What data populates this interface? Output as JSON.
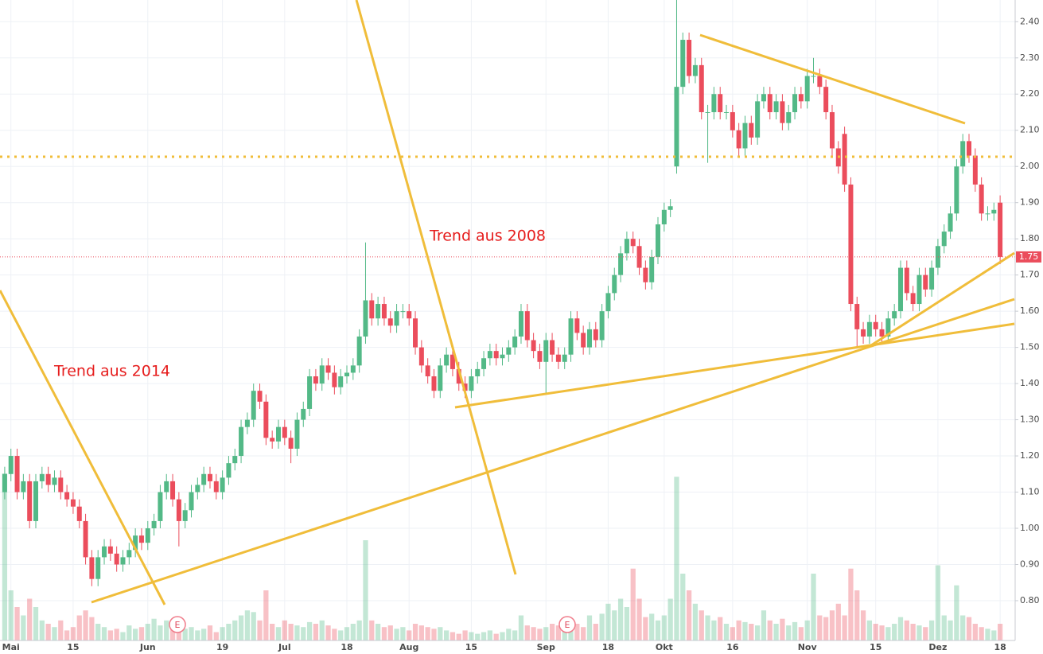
{
  "chart_data": {
    "type": "candlestick",
    "annotations": [
      "Trend aus 2008",
      "Trend aus 2014"
    ],
    "events": [
      "E",
      "E"
    ],
    "last_price": {
      "value": 1.75,
      "label": "1.75"
    },
    "up_color": "#53b987",
    "down_color": "#eb4d5c",
    "grid": true,
    "ylim": [
      0.69,
      2.46
    ],
    "yticks": [
      {
        "value": 0.8,
        "label": "0.80"
      },
      {
        "value": 0.9,
        "label": "0.90"
      },
      {
        "value": 1.0,
        "label": "1.00"
      },
      {
        "value": 1.1,
        "label": "1.10"
      },
      {
        "value": 1.2,
        "label": "1.20"
      },
      {
        "value": 1.3,
        "label": "1.30"
      },
      {
        "value": 1.4,
        "label": "1.40"
      },
      {
        "value": 1.5,
        "label": "1.50"
      },
      {
        "value": 1.6,
        "label": "1.60"
      },
      {
        "value": 1.7,
        "label": "1.70"
      },
      {
        "value": 1.8,
        "label": "1.80"
      },
      {
        "value": 1.9,
        "label": "1.90"
      },
      {
        "value": 2.0,
        "label": "2.00"
      },
      {
        "value": 2.1,
        "label": "2.10"
      },
      {
        "value": 2.2,
        "label": "2.20"
      },
      {
        "value": 2.3,
        "label": "2.30"
      },
      {
        "value": 2.4,
        "label": "2.40"
      }
    ],
    "volume_lim": [
      0,
      100
    ],
    "categories": [
      null,
      "Mai",
      null,
      null,
      null,
      null,
      null,
      null,
      null,
      null,
      null,
      "15",
      null,
      null,
      null,
      null,
      null,
      null,
      null,
      null,
      null,
      null,
      null,
      "Jun",
      null,
      null,
      null,
      null,
      null,
      null,
      null,
      null,
      null,
      null,
      null,
      "19",
      null,
      null,
      null,
      null,
      null,
      null,
      null,
      null,
      null,
      "Jul",
      null,
      null,
      null,
      null,
      null,
      null,
      null,
      null,
      null,
      "18",
      null,
      null,
      null,
      null,
      null,
      null,
      null,
      null,
      null,
      "Aug",
      null,
      null,
      null,
      null,
      null,
      null,
      null,
      null,
      null,
      "15",
      null,
      null,
      null,
      null,
      null,
      null,
      null,
      null,
      null,
      null,
      null,
      "Sep",
      null,
      null,
      null,
      null,
      null,
      null,
      null,
      null,
      null,
      "18",
      null,
      null,
      null,
      null,
      null,
      null,
      null,
      null,
      "Okt",
      null,
      null,
      null,
      null,
      null,
      null,
      null,
      null,
      null,
      null,
      "16",
      null,
      null,
      null,
      null,
      null,
      null,
      null,
      null,
      null,
      null,
      null,
      "Nov",
      null,
      null,
      null,
      null,
      null,
      null,
      null,
      null,
      null,
      null,
      "15",
      null,
      null,
      null,
      null,
      null,
      null,
      null,
      null,
      null,
      "Dez",
      null,
      null,
      null,
      null,
      null,
      null,
      null,
      null,
      null,
      "18"
    ],
    "open": [
      1.1,
      1.15,
      1.2,
      1.1,
      1.13,
      1.02,
      1.13,
      1.15,
      1.12,
      1.14,
      1.1,
      1.08,
      1.06,
      1.02,
      0.92,
      0.86,
      0.92,
      0.95,
      0.93,
      0.9,
      0.92,
      0.94,
      0.98,
      0.96,
      1.0,
      1.02,
      1.1,
      1.13,
      1.08,
      1.02,
      1.05,
      1.1,
      1.12,
      1.15,
      1.13,
      1.1,
      1.14,
      1.18,
      1.2,
      1.28,
      1.3,
      1.38,
      1.35,
      1.25,
      1.24,
      1.28,
      1.25,
      1.22,
      1.3,
      1.33,
      1.42,
      1.4,
      1.45,
      1.43,
      1.39,
      1.42,
      1.43,
      1.45,
      1.53,
      1.63,
      1.58,
      1.62,
      1.58,
      1.56,
      1.6,
      1.6,
      1.58,
      1.5,
      1.45,
      1.42,
      1.38,
      1.45,
      1.48,
      1.44,
      1.4,
      1.38,
      1.42,
      1.44,
      1.47,
      1.49,
      1.47,
      1.48,
      1.5,
      1.53,
      1.6,
      1.52,
      1.49,
      1.46,
      1.52,
      1.48,
      1.46,
      1.48,
      1.58,
      1.54,
      1.5,
      1.55,
      1.52,
      1.6,
      1.65,
      1.7,
      1.76,
      1.8,
      1.78,
      1.72,
      1.68,
      1.75,
      1.84,
      1.88,
      2.0,
      2.22,
      2.35,
      2.25,
      2.28,
      2.15,
      2.15,
      2.2,
      2.15,
      2.15,
      2.1,
      2.05,
      2.12,
      2.08,
      2.18,
      2.2,
      2.15,
      2.18,
      2.12,
      2.15,
      2.2,
      2.18,
      2.25,
      2.25,
      2.22,
      2.15,
      2.05,
      2.09,
      1.95,
      1.62,
      1.55,
      1.53,
      1.57,
      1.55,
      1.53,
      1.58,
      1.6,
      1.72,
      1.65,
      1.62,
      1.7,
      1.66,
      1.72,
      1.78,
      1.82,
      1.87,
      2.0,
      2.07,
      2.03,
      1.95,
      1.87,
      1.87,
      1.9
    ],
    "high": [
      1.17,
      1.22,
      1.22,
      1.15,
      1.15,
      1.15,
      1.17,
      1.17,
      1.16,
      1.16,
      1.12,
      1.1,
      1.08,
      1.04,
      0.94,
      0.94,
      0.97,
      0.97,
      0.95,
      0.94,
      0.96,
      1.0,
      1.0,
      1.02,
      1.04,
      1.12,
      1.15,
      1.15,
      1.1,
      1.07,
      1.12,
      1.14,
      1.17,
      1.17,
      1.15,
      1.16,
      1.2,
      1.22,
      1.3,
      1.32,
      1.4,
      1.4,
      1.37,
      1.27,
      1.3,
      1.3,
      1.27,
      1.32,
      1.35,
      1.44,
      1.44,
      1.47,
      1.47,
      1.45,
      1.44,
      1.45,
      1.47,
      1.55,
      1.79,
      1.65,
      1.64,
      1.64,
      1.6,
      1.62,
      1.62,
      1.62,
      1.6,
      1.52,
      1.47,
      1.44,
      1.47,
      1.5,
      1.5,
      1.46,
      1.42,
      1.44,
      1.46,
      1.49,
      1.51,
      1.51,
      1.5,
      1.52,
      1.55,
      1.62,
      1.62,
      1.54,
      1.51,
      1.54,
      1.54,
      1.5,
      1.5,
      1.6,
      1.6,
      1.56,
      1.57,
      1.57,
      1.62,
      1.67,
      1.72,
      1.78,
      1.82,
      1.82,
      1.8,
      1.74,
      1.77,
      1.86,
      1.9,
      1.91,
      2.46,
      2.37,
      2.37,
      2.3,
      2.3,
      2.17,
      2.22,
      2.22,
      2.17,
      2.17,
      2.12,
      2.14,
      2.14,
      2.2,
      2.22,
      2.22,
      2.2,
      2.2,
      2.17,
      2.22,
      2.22,
      2.27,
      2.3,
      2.27,
      2.24,
      2.17,
      2.07,
      2.11,
      1.97,
      1.64,
      1.57,
      1.59,
      1.59,
      1.57,
      1.6,
      1.62,
      1.74,
      1.74,
      1.67,
      1.72,
      1.72,
      1.74,
      1.8,
      1.84,
      1.89,
      2.02,
      2.09,
      2.09,
      2.05,
      1.97,
      1.89,
      1.9,
      1.92
    ],
    "low": [
      1.08,
      1.13,
      1.08,
      1.08,
      1.0,
      1.0,
      1.11,
      1.1,
      1.1,
      1.08,
      1.06,
      1.04,
      1.0,
      0.9,
      0.84,
      0.84,
      0.9,
      0.91,
      0.88,
      0.88,
      0.9,
      0.92,
      0.94,
      0.94,
      0.98,
      1.0,
      1.08,
      1.06,
      0.95,
      1.0,
      1.03,
      1.08,
      1.1,
      1.11,
      1.08,
      1.08,
      1.12,
      1.16,
      1.18,
      1.26,
      1.28,
      1.33,
      1.23,
      1.22,
      1.22,
      1.23,
      1.18,
      1.2,
      1.28,
      1.31,
      1.38,
      1.38,
      1.41,
      1.37,
      1.37,
      1.4,
      1.41,
      1.43,
      1.51,
      1.56,
      1.56,
      1.56,
      1.54,
      1.54,
      1.58,
      1.56,
      1.48,
      1.43,
      1.4,
      1.36,
      1.36,
      1.43,
      1.42,
      1.38,
      1.36,
      1.36,
      1.4,
      1.42,
      1.45,
      1.45,
      1.45,
      1.46,
      1.48,
      1.51,
      1.5,
      1.47,
      1.44,
      1.37,
      1.46,
      1.44,
      1.44,
      1.46,
      1.52,
      1.48,
      1.48,
      1.5,
      1.5,
      1.58,
      1.63,
      1.68,
      1.74,
      1.76,
      1.7,
      1.66,
      1.66,
      1.73,
      1.82,
      1.86,
      1.98,
      2.2,
      2.23,
      2.23,
      2.13,
      2.01,
      2.13,
      2.13,
      2.13,
      2.08,
      2.03,
      2.03,
      2.06,
      2.06,
      2.16,
      2.13,
      2.13,
      2.1,
      2.1,
      2.13,
      2.16,
      2.16,
      2.23,
      2.2,
      2.13,
      2.03,
      1.98,
      1.93,
      1.6,
      1.5,
      1.51,
      1.51,
      1.53,
      1.51,
      1.51,
      1.56,
      1.58,
      1.63,
      1.6,
      1.6,
      1.64,
      1.64,
      1.7,
      1.76,
      1.8,
      1.85,
      1.98,
      2.01,
      1.93,
      1.85,
      1.85,
      1.85,
      1.73
    ],
    "close": [
      1.15,
      1.2,
      1.1,
      1.13,
      1.02,
      1.13,
      1.15,
      1.12,
      1.14,
      1.1,
      1.08,
      1.06,
      1.02,
      0.92,
      0.86,
      0.92,
      0.95,
      0.93,
      0.9,
      0.92,
      0.94,
      0.98,
      0.96,
      1.0,
      1.02,
      1.1,
      1.13,
      1.08,
      1.02,
      1.05,
      1.1,
      1.12,
      1.15,
      1.13,
      1.1,
      1.14,
      1.18,
      1.2,
      1.28,
      1.3,
      1.38,
      1.35,
      1.25,
      1.24,
      1.28,
      1.25,
      1.22,
      1.3,
      1.33,
      1.42,
      1.4,
      1.45,
      1.43,
      1.39,
      1.42,
      1.43,
      1.45,
      1.53,
      1.63,
      1.58,
      1.62,
      1.58,
      1.56,
      1.6,
      1.6,
      1.58,
      1.5,
      1.45,
      1.42,
      1.38,
      1.45,
      1.48,
      1.44,
      1.4,
      1.38,
      1.42,
      1.44,
      1.47,
      1.49,
      1.47,
      1.48,
      1.5,
      1.53,
      1.6,
      1.52,
      1.49,
      1.46,
      1.52,
      1.48,
      1.46,
      1.48,
      1.58,
      1.54,
      1.5,
      1.55,
      1.52,
      1.6,
      1.65,
      1.7,
      1.76,
      1.8,
      1.78,
      1.72,
      1.68,
      1.75,
      1.84,
      1.88,
      1.89,
      2.22,
      2.35,
      2.25,
      2.28,
      2.15,
      2.15,
      2.2,
      2.15,
      2.15,
      2.1,
      2.05,
      2.12,
      2.08,
      2.18,
      2.2,
      2.15,
      2.18,
      2.12,
      2.15,
      2.2,
      2.18,
      2.25,
      2.25,
      2.22,
      2.15,
      2.05,
      2.0,
      1.95,
      1.62,
      1.55,
      1.53,
      1.57,
      1.55,
      1.53,
      1.58,
      1.6,
      1.72,
      1.65,
      1.62,
      1.7,
      1.66,
      1.72,
      1.78,
      1.82,
      1.87,
      2.0,
      2.07,
      2.03,
      1.95,
      1.87,
      1.87,
      1.88,
      1.75
    ],
    "volume": [
      100,
      30,
      20,
      15,
      25,
      20,
      12,
      10,
      8,
      12,
      6,
      8,
      15,
      18,
      14,
      10,
      8,
      6,
      7,
      5,
      9,
      7,
      8,
      10,
      13,
      9,
      12,
      8,
      6,
      7,
      8,
      6,
      7,
      9,
      5,
      8,
      10,
      12,
      15,
      18,
      17,
      12,
      30,
      10,
      8,
      12,
      10,
      9,
      8,
      11,
      10,
      12,
      9,
      7,
      6,
      8,
      10,
      12,
      60,
      12,
      10,
      8,
      9,
      7,
      8,
      6,
      10,
      9,
      8,
      7,
      8,
      6,
      5,
      4,
      6,
      5,
      4,
      5,
      6,
      4,
      5,
      7,
      6,
      15,
      9,
      8,
      7,
      8,
      10,
      9,
      7,
      12,
      10,
      8,
      15,
      10,
      16,
      22,
      18,
      25,
      20,
      43,
      25,
      14,
      16,
      12,
      15,
      25,
      98,
      40,
      30,
      22,
      18,
      15,
      12,
      14,
      10,
      8,
      12,
      11,
      10,
      9,
      18,
      12,
      10,
      13,
      9,
      11,
      8,
      12,
      40,
      15,
      14,
      18,
      22,
      15,
      43,
      30,
      18,
      12,
      10,
      9,
      8,
      10,
      14,
      12,
      10,
      9,
      8,
      12,
      45,
      15,
      12,
      33,
      15,
      14,
      10,
      8,
      7,
      6,
      10
    ]
  }
}
